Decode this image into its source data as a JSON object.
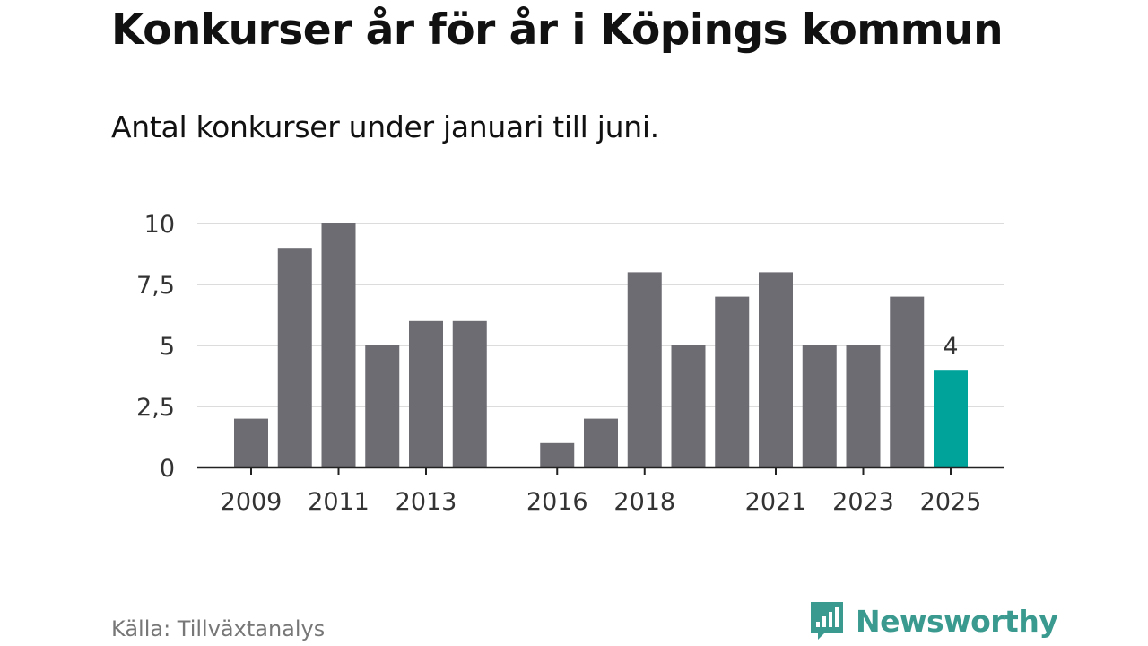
{
  "title": "Konkurser år för år i Köpings kommun",
  "subtitle": "Antal konkurser under januari till juni.",
  "source": "Källa: Tillväxtanalys",
  "brand": {
    "name": "Newsworthy",
    "icon": "newsworthy-logo-icon",
    "color": "#3a9a8f"
  },
  "colors": {
    "bar": "#6d6c73",
    "highlight": "#00a39a",
    "grid": "#dcdcdc",
    "axis": "#222222"
  },
  "chart_data": {
    "type": "bar",
    "x": [
      2009,
      2010,
      2011,
      2012,
      2013,
      2014,
      2015,
      2016,
      2017,
      2018,
      2019,
      2020,
      2021,
      2022,
      2023,
      2024,
      2025
    ],
    "values": [
      2,
      9,
      10,
      5,
      6,
      6,
      0,
      1,
      2,
      8,
      5,
      7,
      8,
      5,
      5,
      7,
      4
    ],
    "highlight": 2025,
    "highlight_label": "4",
    "x_tick_labels": [
      "2009",
      "2011",
      "2013",
      "2016",
      "2018",
      "2021",
      "2023",
      "2025"
    ],
    "y_ticks": [
      0,
      2.5,
      5,
      7.5,
      10
    ],
    "y_tick_labels": [
      "0",
      "2,5",
      "5",
      "7,5",
      "10"
    ],
    "ylim": [
      0,
      10
    ],
    "grid": true,
    "xlabel": "",
    "ylabel": ""
  }
}
